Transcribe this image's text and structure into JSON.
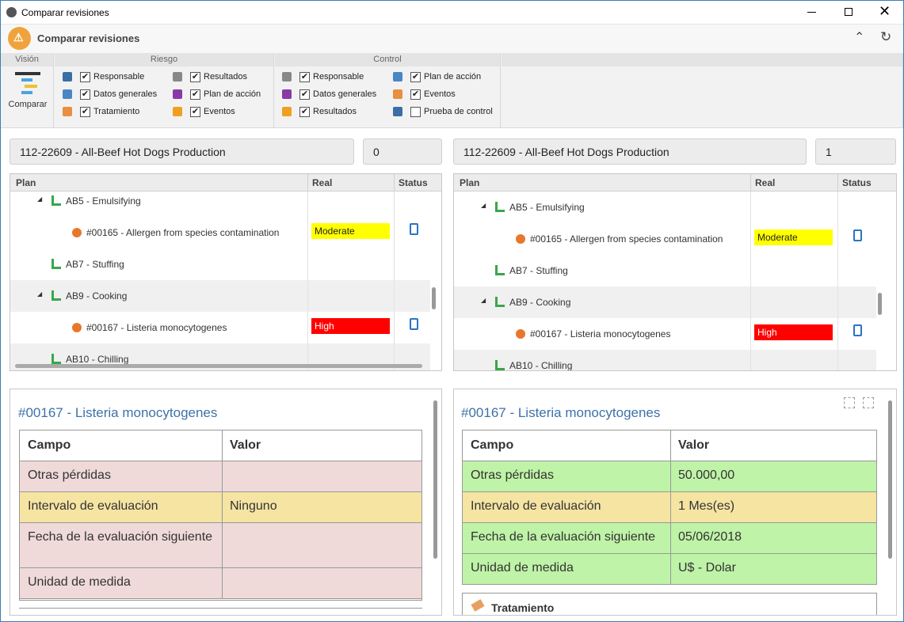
{
  "window": {
    "title": "Comparar revisiones"
  },
  "header": {
    "title": "Comparar revisiones"
  },
  "ribbon": {
    "vision": {
      "label": "Visión",
      "button": "Comparar"
    },
    "riesgo": {
      "label": "Riesgo",
      "options": [
        {
          "label": "Responsable",
          "checked": true
        },
        {
          "label": "Resultados",
          "checked": true
        },
        {
          "label": "Datos generales",
          "checked": true
        },
        {
          "label": "Plan de acción",
          "checked": true
        },
        {
          "label": "Tratamiento",
          "checked": true
        },
        {
          "label": "Eventos",
          "checked": true
        }
      ]
    },
    "control": {
      "label": "Control",
      "options": [
        {
          "label": "Responsable",
          "checked": true
        },
        {
          "label": "Plan de acción",
          "checked": true
        },
        {
          "label": "Datos generales",
          "checked": true
        },
        {
          "label": "Eventos",
          "checked": true
        },
        {
          "label": "Resultados",
          "checked": true
        },
        {
          "label": "Prueba de control",
          "checked": false
        }
      ]
    }
  },
  "panels": [
    {
      "record": "112-22609 - All-Beef Hot Dogs Production",
      "revision": "0",
      "tree": {
        "columns": [
          "Plan",
          "Real",
          "Status"
        ],
        "rows": [
          {
            "label": "AB5 - Emulsifying",
            "children": [
              {
                "label": "#00165 - Allergen from species contamination",
                "real": "Moderate",
                "real_color": "#ffff00"
              }
            ]
          },
          {
            "label": "AB7 - Stuffing"
          },
          {
            "label": "AB9 - Cooking",
            "children": [
              {
                "label": "#00167 - Listeria monocytogenes",
                "real": "High",
                "real_color": "#ff0000"
              }
            ]
          },
          {
            "label": "AB10 - Chilling"
          }
        ]
      },
      "detail": {
        "title": "#00167 - Listeria monocytogenes",
        "columns": [
          "Campo",
          "Valor"
        ],
        "rows": [
          {
            "field": "Otras pérdidas",
            "value": null,
            "color": "#efd9d9"
          },
          {
            "field": "Intervalo de evaluación",
            "value": "Ninguno",
            "color": "#f5e4a2"
          },
          {
            "field": "Fecha de la evaluación siguiente",
            "value": null,
            "color": "#efd9d9"
          },
          {
            "field": "Unidad de medida",
            "value": null,
            "color": "#efd9d9"
          }
        ]
      }
    },
    {
      "record": "112-22609 - All-Beef Hot Dogs Production",
      "revision": "1",
      "tree": {
        "columns": [
          "Plan",
          "Real",
          "Status"
        ],
        "rows": [
          {
            "label": "AB5 - Emulsifying",
            "children": [
              {
                "label": "#00165 - Allergen from species contamination",
                "real": "Moderate",
                "real_color": "#ffff00"
              }
            ]
          },
          {
            "label": "AB7 - Stuffing"
          },
          {
            "label": "AB9 - Cooking",
            "children": [
              {
                "label": "#00167 - Listeria monocytogenes",
                "real": "High",
                "real_color": "#ff0000"
              }
            ]
          },
          {
            "label": "AB10 - Chilling"
          }
        ]
      },
      "detail": {
        "title": "#00167 - Listeria monocytogenes",
        "columns": [
          "Campo",
          "Valor"
        ],
        "rows": [
          {
            "field": "Otras pérdidas",
            "value": "50.000,00",
            "color": "#bff3a7"
          },
          {
            "field": "Intervalo de evaluación",
            "value": "1 Mes(es)",
            "color": "#f5e4a2"
          },
          {
            "field": "Fecha de la evaluación siguiente",
            "value": "05/06/2018",
            "color": "#bff3a7"
          },
          {
            "field": "Unidad de medida",
            "value": "U$ - Dolar",
            "color": "#bff3a7"
          }
        ],
        "section": "Tratamiento"
      }
    }
  ]
}
